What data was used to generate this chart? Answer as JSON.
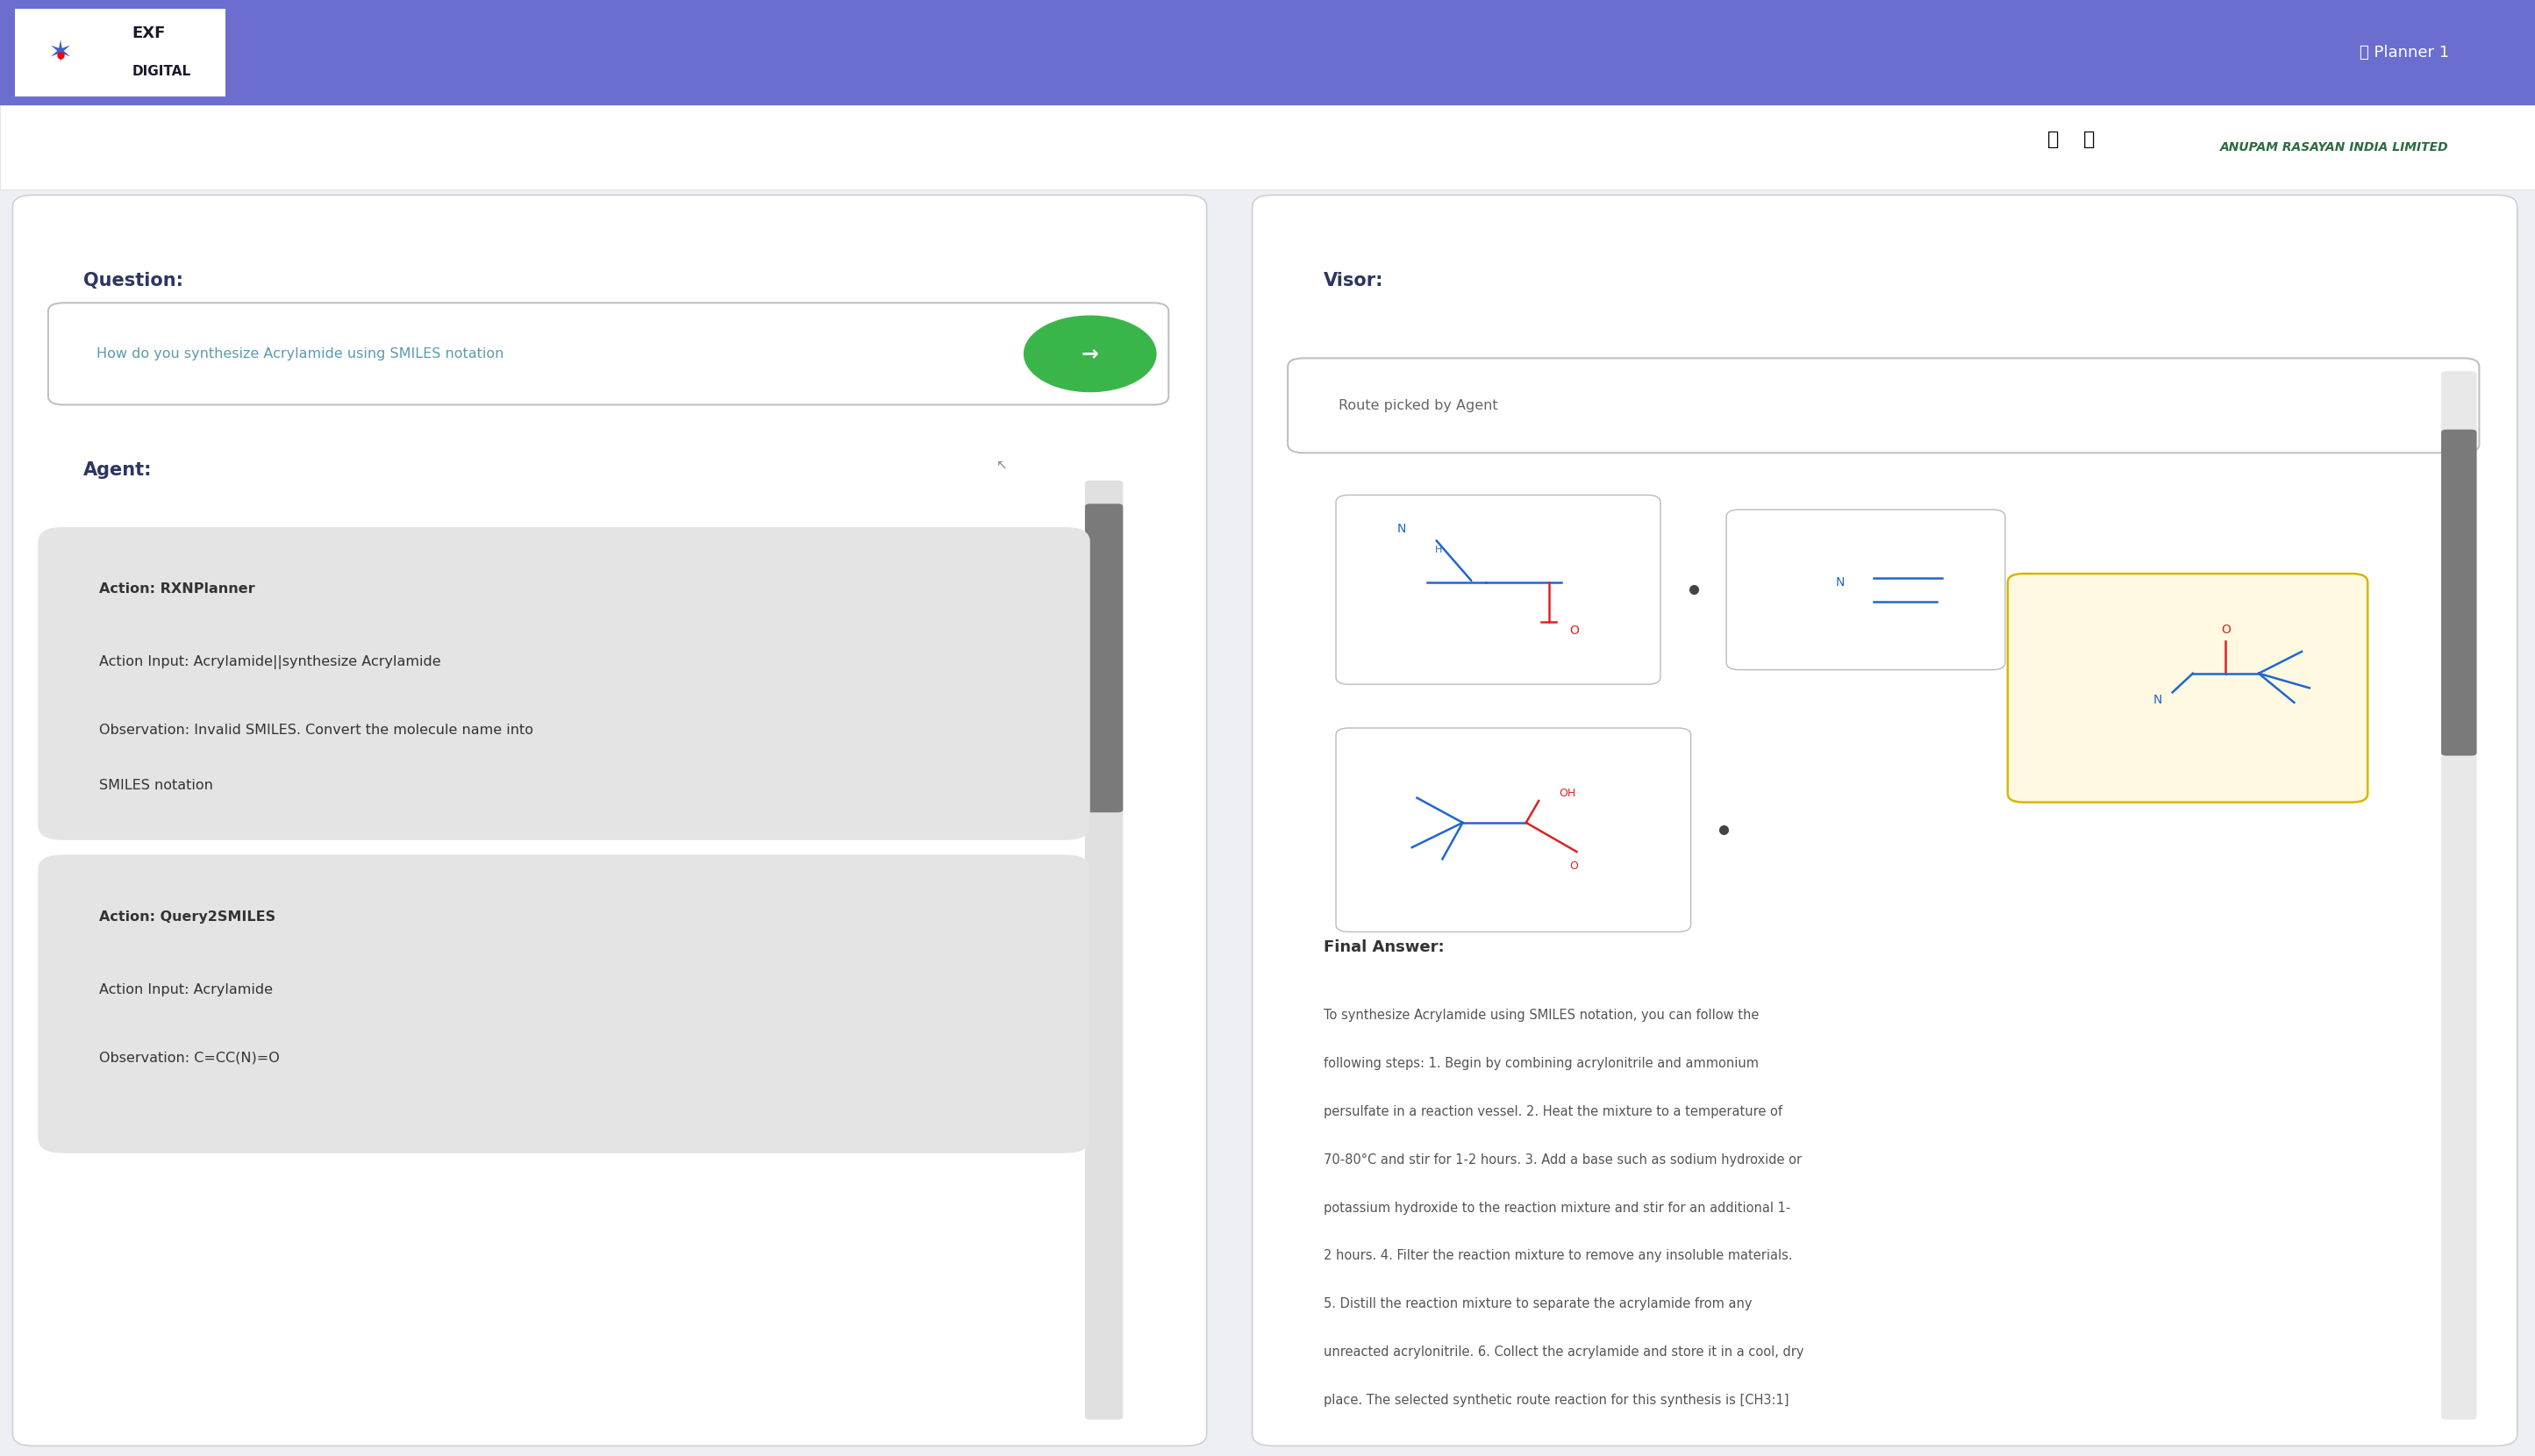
{
  "header_color": "#6b6ecf",
  "bg_color": "#eeeff5",
  "white": "#ffffff",
  "logo_text_exf": "EXF",
  "logo_text_digital": "DIGITAL",
  "planner_text": "Planner 1",
  "company_name": "ANUPAM RASAYAN INDIA LIMITED",
  "question_label": "Question:",
  "question_text": "How do you synthesize Acrylamide using SMILES notation",
  "agent_label": "Agent:",
  "action1_label": "Action: RXNPlanner",
  "action1_input": "Action Input: Acrylamide||synthesize Acrylamide",
  "action1_obs_line1": "Observation: Invalid SMILES. Convert the molecule name into",
  "action1_obs_line2": "SMILES notation",
  "action2_label": "Action: Query2SMILES",
  "action2_input": "Action Input: Acrylamide",
  "action2_obs": "Observation: C=CC(N)=O",
  "visor_label": "Visor:",
  "route_label": "Route picked by Agent",
  "final_answer_label": "Final Answer:",
  "final_answer_text": "To synthesize Acrylamide using SMILES notation, you can follow the following steps: 1. Begin by combining acrylonitrile and ammonium persulfate in a reaction vessel. 2. Heat the mixture to a temperature of 70-80°C and stir for 1-2 hours. 3. Add a base such as sodium hydroxide or potassium hydroxide to the reaction mixture and stir for an additional 1-2 hours. 4. Filter the reaction mixture to remove any insoluble materials. 5. Distill the reaction mixture to separate the acrylamide from any unreacted acrylonitrile. 6. Collect the acrylamide and store it in a cool, dry place. The selected synthetic route reaction for this synthesis is [CH3:1]",
  "label_color": "#2d3561",
  "question_text_color": "#5b9baf",
  "action_bg": "#e4e4e4",
  "action_text_color": "#333333",
  "answer_label_color": "#333333",
  "answer_text_color": "#555555",
  "scrollbar_color": "#7a7a7a",
  "go_button_color": "#3ab54a"
}
